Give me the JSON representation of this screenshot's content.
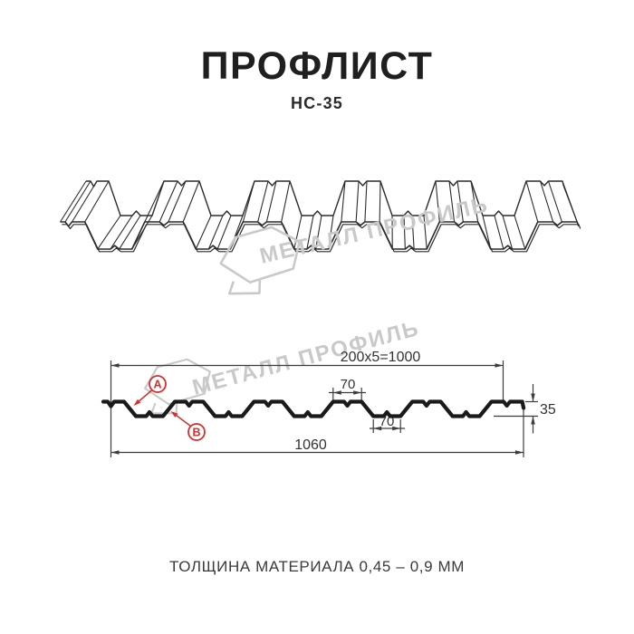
{
  "header": {
    "title": "ПРОФЛИСТ",
    "subtitle": "НС-35"
  },
  "watermark": {
    "brand_text": "МЕТАЛЛ ПРОФИЛЬ",
    "logo": "metall-profil-house-logo"
  },
  "drawing": {
    "dimensions": {
      "module_width": "200x5=1000",
      "rib_top_width": "70",
      "rib_bottom_width": "70",
      "overall_width": "1060",
      "profile_height": "35"
    },
    "markers": {
      "a": "A",
      "b": "B"
    }
  },
  "footer": {
    "note": "ТОЛЩИНА МАТЕРИАЛА 0,45 – 0,9 ММ"
  },
  "colors": {
    "line": "#2e2e2e",
    "profile": "#1a1a1a",
    "accent_red": "#d53030",
    "watermark": "#c9c9c9",
    "background": "#ffffff"
  }
}
